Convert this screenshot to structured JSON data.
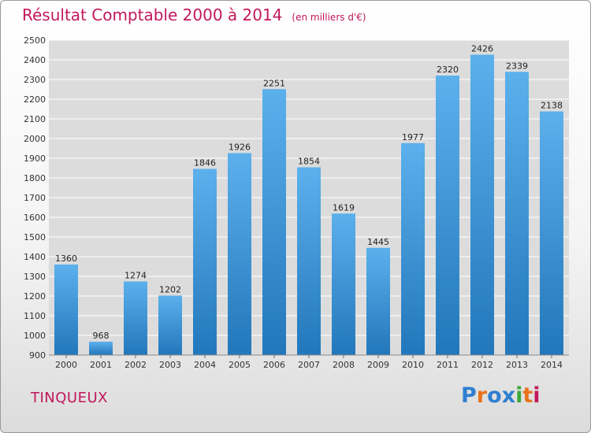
{
  "header": {
    "title": "Résultat Comptable 2000 à 2014",
    "subtitle": "(en milliers d'€)"
  },
  "footer": {
    "commune": "TINQUEUX",
    "brand": "Proxiti",
    "brand_letters": [
      {
        "ch": "P",
        "color": "#2f7fd0"
      },
      {
        "ch": "r",
        "color": "#e8731c"
      },
      {
        "ch": "o",
        "color": "#2f7fd0"
      },
      {
        "ch": "x",
        "color": "#2f7fd0"
      },
      {
        "ch": "i",
        "color": "#3aa83a"
      },
      {
        "ch": "t",
        "color": "#e8731c"
      },
      {
        "ch": "i",
        "color": "#c2185b"
      }
    ]
  },
  "colors": {
    "accent": "#c2185b",
    "bar_top": "#5cb0ec",
    "bar_bottom": "#2277bb",
    "grid": "#ffffff",
    "plot_bg": "#dcdcdc"
  },
  "chart_data": {
    "type": "bar",
    "title": "Résultat Comptable 2000 à 2014",
    "subtitle": "(en milliers d'€)",
    "categories": [
      "2000",
      "2001",
      "2002",
      "2003",
      "2004",
      "2005",
      "2006",
      "2007",
      "2008",
      "2009",
      "2010",
      "2011",
      "2012",
      "2013",
      "2014"
    ],
    "values": [
      1360,
      968,
      1274,
      1202,
      1846,
      1926,
      2251,
      1854,
      1619,
      1445,
      1977,
      2320,
      2426,
      2339,
      2138
    ],
    "ylim": [
      900,
      2500
    ],
    "ytick_step": 100,
    "grid": true,
    "legend": "none",
    "data_labels": true
  }
}
